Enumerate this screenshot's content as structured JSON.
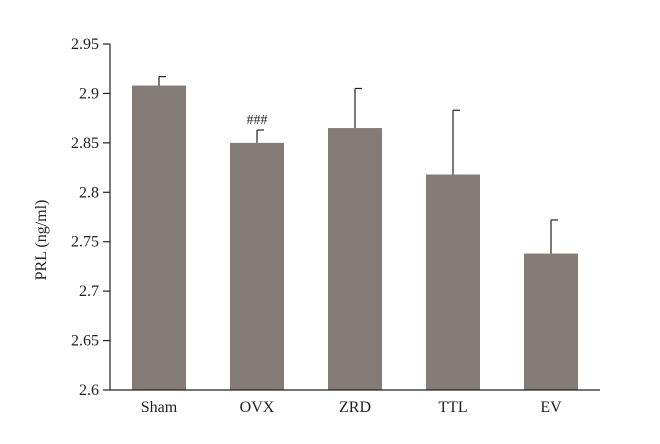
{
  "chart_data": {
    "type": "bar",
    "categories": [
      "Sham",
      "OVX",
      "ZRD",
      "TTL",
      "EV"
    ],
    "values": [
      2.908,
      2.85,
      2.865,
      2.818,
      2.738
    ],
    "errors": [
      0.009,
      0.013,
      0.04,
      0.065,
      0.034
    ],
    "annotations": [
      {
        "category": "OVX",
        "text": "###"
      }
    ],
    "ylabel": "PRL (ng/ml)",
    "xlabel": "",
    "ylim": [
      2.6,
      2.95
    ],
    "yticks": [
      "2.6",
      "2.65",
      "2.7",
      "2.75",
      "2.8",
      "2.85",
      "2.9",
      "2.95"
    ],
    "grid": false,
    "bar_color": "#857c77"
  }
}
